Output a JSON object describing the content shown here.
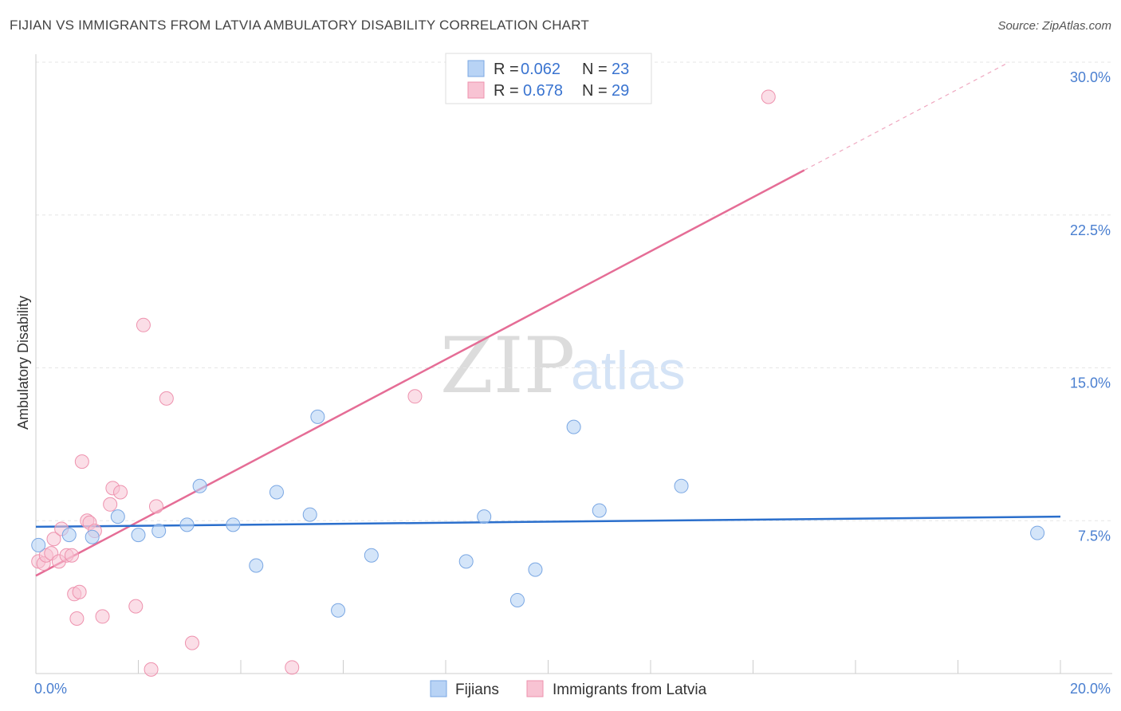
{
  "header": {
    "title": "FIJIAN VS IMMIGRANTS FROM LATVIA AMBULATORY DISABILITY CORRELATION CHART",
    "source": "Source: ZipAtlas.com"
  },
  "colors": {
    "fijians_fill": "#b8d3f5",
    "fijians_stroke": "#7aa7e3",
    "fijians_line": "#2b6fcc",
    "latvia_fill": "#f8c3d3",
    "latvia_stroke": "#ee92ae",
    "latvia_line": "#e56d96",
    "grid": "#e6e6e6",
    "tick_label": "#4a7fd0"
  },
  "watermark": {
    "zip": "ZIP",
    "atlas": "atlas"
  },
  "legend": {
    "fijians": {
      "r_label": "R = ",
      "r_value": "0.062",
      "n_label": "N = ",
      "n_value": "23"
    },
    "latvia": {
      "r_label": "R = ",
      "r_value": "0.678",
      "n_label": "N = ",
      "n_value": "29"
    }
  },
  "bottom_legend": {
    "fijians": "Fijians",
    "latvia": "Immigrants from Latvia"
  },
  "chart_data": {
    "type": "scatter",
    "title": "FIJIAN VS IMMIGRANTS FROM LATVIA AMBULATORY DISABILITY CORRELATION CHART",
    "xlabel": "",
    "ylabel": "Ambulatory Disability",
    "xlim": [
      0,
      20
    ],
    "ylim": [
      0,
      30
    ],
    "x_tick_labels": [
      "0.0%",
      "20.0%"
    ],
    "y_ticks": [
      7.5,
      15.0,
      22.5,
      30.0
    ],
    "y_tick_labels": [
      "7.5%",
      "15.0%",
      "22.5%",
      "30.0%"
    ],
    "grid": true,
    "series": [
      {
        "name": "Fijians",
        "r": 0.062,
        "n": 23,
        "points": [
          [
            0.05,
            6.3
          ],
          [
            0.65,
            6.8
          ],
          [
            1.1,
            6.7
          ],
          [
            1.6,
            7.7
          ],
          [
            2.0,
            6.8
          ],
          [
            2.4,
            7.0
          ],
          [
            2.95,
            7.3
          ],
          [
            3.2,
            9.2
          ],
          [
            3.85,
            7.3
          ],
          [
            4.3,
            5.3
          ],
          [
            4.7,
            8.9
          ],
          [
            5.35,
            7.8
          ],
          [
            5.5,
            12.6
          ],
          [
            5.9,
            3.1
          ],
          [
            6.55,
            5.8
          ],
          [
            8.4,
            5.5
          ],
          [
            8.75,
            7.7
          ],
          [
            9.4,
            3.6
          ],
          [
            9.75,
            5.1
          ],
          [
            10.5,
            12.1
          ],
          [
            11.0,
            8.0
          ],
          [
            12.6,
            9.2
          ],
          [
            19.55,
            6.9
          ]
        ],
        "trend": {
          "x0": 0,
          "y0": 7.2,
          "x1": 20,
          "y1": 7.7
        }
      },
      {
        "name": "Immigrants from Latvia",
        "r": 0.678,
        "n": 29,
        "points": [
          [
            0.05,
            5.5
          ],
          [
            0.15,
            5.4
          ],
          [
            0.2,
            5.8
          ],
          [
            0.3,
            5.9
          ],
          [
            0.35,
            6.6
          ],
          [
            0.45,
            5.5
          ],
          [
            0.5,
            7.1
          ],
          [
            0.6,
            5.8
          ],
          [
            0.7,
            5.8
          ],
          [
            0.75,
            3.9
          ],
          [
            0.8,
            2.7
          ],
          [
            0.85,
            4.0
          ],
          [
            0.9,
            10.4
          ],
          [
            1.0,
            7.5
          ],
          [
            1.05,
            7.4
          ],
          [
            1.15,
            7.0
          ],
          [
            1.3,
            2.8
          ],
          [
            1.45,
            8.3
          ],
          [
            1.5,
            9.1
          ],
          [
            1.65,
            8.9
          ],
          [
            1.95,
            3.3
          ],
          [
            2.1,
            17.1
          ],
          [
            2.25,
            0.2
          ],
          [
            2.35,
            8.2
          ],
          [
            2.55,
            13.5
          ],
          [
            3.05,
            1.5
          ],
          [
            5.0,
            0.3
          ],
          [
            7.4,
            13.6
          ],
          [
            14.3,
            28.3
          ]
        ],
        "trend": {
          "x0": 0,
          "y0": 4.8,
          "x1": 15.0,
          "y1": 24.7
        },
        "trend_extension": {
          "x0": 15.0,
          "y0": 24.7,
          "x1": 19.0,
          "y1": 30.0
        }
      }
    ]
  }
}
